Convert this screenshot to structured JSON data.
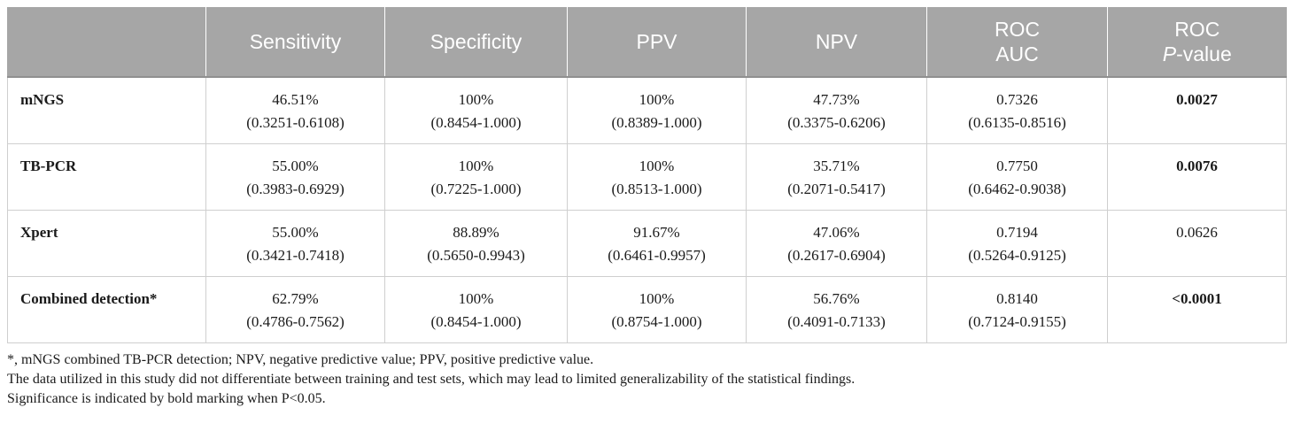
{
  "table": {
    "headers": [
      {
        "lines": [
          ""
        ]
      },
      {
        "lines": [
          "Sensitivity"
        ]
      },
      {
        "lines": [
          "Specificity"
        ]
      },
      {
        "lines": [
          "PPV"
        ]
      },
      {
        "lines": [
          "NPV"
        ]
      },
      {
        "lines": [
          "ROC",
          "AUC"
        ]
      },
      {
        "lines": [
          "ROC",
          "P",
          "-value"
        ]
      }
    ],
    "header_texts": {
      "sensitivity": "Sensitivity",
      "specificity": "Specificity",
      "ppv": "PPV",
      "npv": "NPV",
      "roc_auc_1": "ROC",
      "roc_auc_2": "AUC",
      "roc_p_1": "ROC",
      "roc_p_italic": "P",
      "roc_p_rest": "-value"
    },
    "rows": [
      {
        "label": "mNGS",
        "sensitivity": [
          "46.51%",
          "(0.3251-0.6108)"
        ],
        "specificity": [
          "100%",
          "(0.8454-1.000)"
        ],
        "ppv": [
          "100%",
          "(0.8389-1.000)"
        ],
        "npv": [
          "47.73%",
          "(0.3375-0.6206)"
        ],
        "roc_auc": [
          "0.7326",
          "(0.6135-0.8516)"
        ],
        "p_value": "0.0027",
        "p_bold": true
      },
      {
        "label": "TB-PCR",
        "sensitivity": [
          "55.00%",
          "(0.3983-0.6929)"
        ],
        "specificity": [
          "100%",
          "(0.7225-1.000)"
        ],
        "ppv": [
          "100%",
          "(0.8513-1.000)"
        ],
        "npv": [
          "35.71%",
          "(0.2071-0.5417)"
        ],
        "roc_auc": [
          "0.7750",
          "(0.6462-0.9038)"
        ],
        "p_value": "0.0076",
        "p_bold": true
      },
      {
        "label": "Xpert",
        "sensitivity": [
          "55.00%",
          "(0.3421-0.7418)"
        ],
        "specificity": [
          "88.89%",
          "(0.5650-0.9943)"
        ],
        "ppv": [
          "91.67%",
          "(0.6461-0.9957)"
        ],
        "npv": [
          "47.06%",
          "(0.2617-0.6904)"
        ],
        "roc_auc": [
          "0.7194",
          "(0.5264-0.9125)"
        ],
        "p_value": "0.0626",
        "p_bold": false
      },
      {
        "label": "Combined detection*",
        "sensitivity": [
          "62.79%",
          "(0.4786-0.7562)"
        ],
        "specificity": [
          "100%",
          "(0.8454-1.000)"
        ],
        "ppv": [
          "100%",
          "(0.8754-1.000)"
        ],
        "npv": [
          "56.76%",
          "(0.4091-0.7133)"
        ],
        "roc_auc": [
          "0.8140",
          "(0.7124-0.9155)"
        ],
        "p_value": "<0.0001",
        "p_bold": true
      }
    ]
  },
  "footnotes": [
    "*, mNGS combined TB-PCR detection; NPV, negative predictive value; PPV, positive predictive value.",
    "The data utilized in this study did not differentiate between training and test sets, which may lead to limited generalizability of the statistical findings.",
    "Significance is indicated by bold marking when P<0.05."
  ],
  "colors": {
    "header_bg": "#a6a6a6",
    "header_text": "#ffffff",
    "grid": "#cfcfcf",
    "body_text": "#1a1a1a"
  }
}
